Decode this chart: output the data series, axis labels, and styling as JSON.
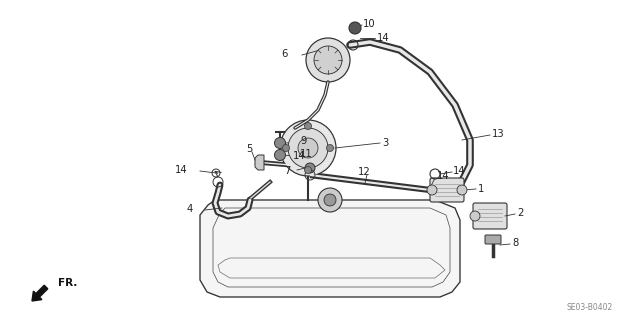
{
  "bg_color": "#ffffff",
  "fig_width": 6.4,
  "fig_height": 3.19,
  "dpi": 100,
  "watermark": "SE03-B0402",
  "fr_label": "FR.",
  "line_color": "#333333",
  "label_color": "#222222",
  "label_fontsize": 7.0
}
